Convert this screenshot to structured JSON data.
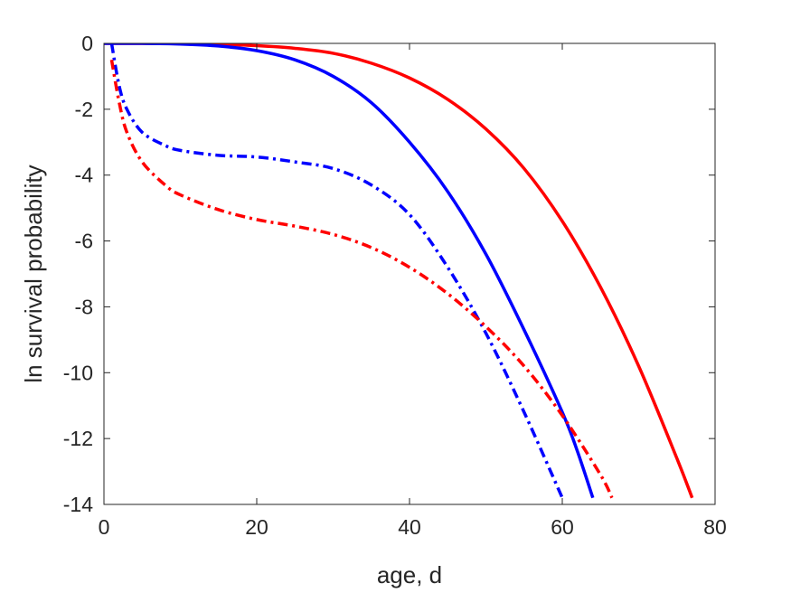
{
  "chart_data": {
    "type": "line",
    "title": "",
    "xlabel": "age, d",
    "ylabel": "ln survival probability",
    "xlim": [
      0,
      80
    ],
    "ylim": [
      -14,
      0
    ],
    "xticks": [
      0,
      20,
      40,
      60,
      80
    ],
    "yticks": [
      0,
      -2,
      -4,
      -6,
      -8,
      -10,
      -12,
      -14
    ],
    "xtick_labels": [
      "0",
      "20",
      "40",
      "60",
      "80"
    ],
    "ytick_labels": [
      "0",
      "-2",
      "-4",
      "-6",
      "-8",
      "-10",
      "-12",
      "-14"
    ],
    "grid": false,
    "legend": "none",
    "series": [
      {
        "color": "#ff0000",
        "style": "solid",
        "x": [
          0,
          5,
          10,
          15,
          20,
          25,
          30,
          35,
          40,
          45,
          50,
          55,
          60,
          65,
          70,
          75,
          77
        ],
        "y": [
          0,
          0,
          -0.01,
          -0.03,
          -0.07,
          -0.15,
          -0.3,
          -0.6,
          -1.05,
          -1.7,
          -2.6,
          -3.8,
          -5.4,
          -7.4,
          -9.8,
          -12.6,
          -13.8
        ]
      },
      {
        "color": "#0000ff",
        "style": "solid",
        "x": [
          0,
          5,
          10,
          15,
          20,
          25,
          30,
          35,
          40,
          45,
          50,
          55,
          60,
          62,
          64
        ],
        "y": [
          0,
          0,
          -0.02,
          -0.08,
          -0.22,
          -0.5,
          -1.0,
          -1.8,
          -3.0,
          -4.5,
          -6.4,
          -8.7,
          -11.2,
          -12.4,
          -13.8
        ]
      },
      {
        "color": "#0000ff",
        "style": "dashdot",
        "x": [
          1,
          2,
          3,
          5,
          8,
          10,
          15,
          20,
          25,
          30,
          35,
          40,
          45,
          50,
          55,
          60
        ],
        "y": [
          0,
          -1.3,
          -2.0,
          -2.7,
          -3.1,
          -3.25,
          -3.4,
          -3.45,
          -3.6,
          -3.8,
          -4.3,
          -5.2,
          -6.8,
          -8.8,
          -11.2,
          -13.8
        ]
      },
      {
        "color": "#ff0000",
        "style": "dashdot",
        "x": [
          1,
          2,
          3,
          5,
          8,
          10,
          15,
          20,
          25,
          30,
          35,
          40,
          45,
          50,
          55,
          60,
          65,
          66.5
        ],
        "y": [
          -0.5,
          -1.8,
          -2.7,
          -3.6,
          -4.3,
          -4.6,
          -5.05,
          -5.35,
          -5.55,
          -5.8,
          -6.2,
          -6.8,
          -7.6,
          -8.6,
          -9.8,
          -11.3,
          -13.1,
          -13.8
        ]
      }
    ]
  }
}
